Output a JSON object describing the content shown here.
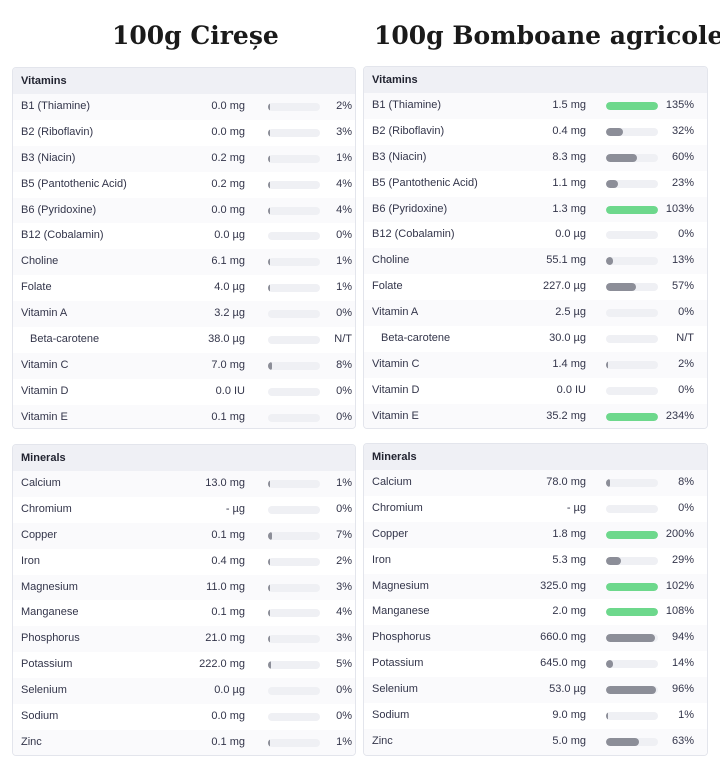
{
  "titles": {
    "left": "100g Cireșe",
    "right": "100g Bomboane agricole"
  },
  "colors": {
    "green": "#6dd88c",
    "gray": "#8c8e98",
    "track": "#eff0f4"
  },
  "left": {
    "vitamins": {
      "header": "Vitamins",
      "rows": [
        {
          "name": "B1 (Thiamine)",
          "amount": "0.0 mg",
          "pct": "2%",
          "level": 0.02
        },
        {
          "name": "B2 (Riboflavin)",
          "amount": "0.0 mg",
          "pct": "3%",
          "level": 0.03
        },
        {
          "name": "B3 (Niacin)",
          "amount": "0.2 mg",
          "pct": "1%",
          "level": 0.01
        },
        {
          "name": "B5 (Pantothenic Acid)",
          "amount": "0.2 mg",
          "pct": "4%",
          "level": 0.04
        },
        {
          "name": "B6 (Pyridoxine)",
          "amount": "0.0 mg",
          "pct": "4%",
          "level": 0.04
        },
        {
          "name": "B12 (Cobalamin)",
          "amount": "0.0 µg",
          "pct": "0%",
          "level": 0
        },
        {
          "name": "Choline",
          "amount": "6.1 mg",
          "pct": "1%",
          "level": 0.01
        },
        {
          "name": "Folate",
          "amount": "4.0 µg",
          "pct": "1%",
          "level": 0.01
        },
        {
          "name": "Vitamin A",
          "amount": "3.2 µg",
          "pct": "0%",
          "level": 0
        },
        {
          "name": "Beta-carotene",
          "amount": "38.0 µg",
          "pct": "N/T",
          "level": 0,
          "indent": true
        },
        {
          "name": "Vitamin C",
          "amount": "7.0 mg",
          "pct": "8%",
          "level": 0.08
        },
        {
          "name": "Vitamin D",
          "amount": "0.0 IU",
          "pct": "0%",
          "level": 0
        },
        {
          "name": "Vitamin E",
          "amount": "0.1 mg",
          "pct": "0%",
          "level": 0
        }
      ]
    },
    "minerals": {
      "header": "Minerals",
      "rows": [
        {
          "name": "Calcium",
          "amount": "13.0 mg",
          "pct": "1%",
          "level": 0.01
        },
        {
          "name": "Chromium",
          "amount": "- µg",
          "pct": "0%",
          "level": 0
        },
        {
          "name": "Copper",
          "amount": "0.1 mg",
          "pct": "7%",
          "level": 0.07
        },
        {
          "name": "Iron",
          "amount": "0.4 mg",
          "pct": "2%",
          "level": 0.02
        },
        {
          "name": "Magnesium",
          "amount": "11.0 mg",
          "pct": "3%",
          "level": 0.03
        },
        {
          "name": "Manganese",
          "amount": "0.1 mg",
          "pct": "4%",
          "level": 0.04
        },
        {
          "name": "Phosphorus",
          "amount": "21.0 mg",
          "pct": "3%",
          "level": 0.03
        },
        {
          "name": "Potassium",
          "amount": "222.0 mg",
          "pct": "5%",
          "level": 0.05
        },
        {
          "name": "Selenium",
          "amount": "0.0 µg",
          "pct": "0%",
          "level": 0
        },
        {
          "name": "Sodium",
          "amount": "0.0 mg",
          "pct": "0%",
          "level": 0
        },
        {
          "name": "Zinc",
          "amount": "0.1 mg",
          "pct": "1%",
          "level": 0.01
        }
      ]
    }
  },
  "right": {
    "vitamins": {
      "header": "Vitamins",
      "rows": [
        {
          "name": "B1 (Thiamine)",
          "amount": "1.5 mg",
          "pct": "135%",
          "level": 1.35
        },
        {
          "name": "B2 (Riboflavin)",
          "amount": "0.4 mg",
          "pct": "32%",
          "level": 0.32
        },
        {
          "name": "B3 (Niacin)",
          "amount": "8.3 mg",
          "pct": "60%",
          "level": 0.6
        },
        {
          "name": "B5 (Pantothenic Acid)",
          "amount": "1.1 mg",
          "pct": "23%",
          "level": 0.23
        },
        {
          "name": "B6 (Pyridoxine)",
          "amount": "1.3 mg",
          "pct": "103%",
          "level": 1.03
        },
        {
          "name": "B12 (Cobalamin)",
          "amount": "0.0 µg",
          "pct": "0%",
          "level": 0
        },
        {
          "name": "Choline",
          "amount": "55.1 mg",
          "pct": "13%",
          "level": 0.13
        },
        {
          "name": "Folate",
          "amount": "227.0 µg",
          "pct": "57%",
          "level": 0.57
        },
        {
          "name": "Vitamin A",
          "amount": "2.5 µg",
          "pct": "0%",
          "level": 0
        },
        {
          "name": "Beta-carotene",
          "amount": "30.0 µg",
          "pct": "N/T",
          "level": 0,
          "indent": true
        },
        {
          "name": "Vitamin C",
          "amount": "1.4 mg",
          "pct": "2%",
          "level": 0.02
        },
        {
          "name": "Vitamin D",
          "amount": "0.0 IU",
          "pct": "0%",
          "level": 0
        },
        {
          "name": "Vitamin E",
          "amount": "35.2 mg",
          "pct": "234%",
          "level": 2.34
        }
      ]
    },
    "minerals": {
      "header": "Minerals",
      "rows": [
        {
          "name": "Calcium",
          "amount": "78.0 mg",
          "pct": "8%",
          "level": 0.08
        },
        {
          "name": "Chromium",
          "amount": "- µg",
          "pct": "0%",
          "level": 0
        },
        {
          "name": "Copper",
          "amount": "1.8 mg",
          "pct": "200%",
          "level": 2.0
        },
        {
          "name": "Iron",
          "amount": "5.3 mg",
          "pct": "29%",
          "level": 0.29
        },
        {
          "name": "Magnesium",
          "amount": "325.0 mg",
          "pct": "102%",
          "level": 1.02
        },
        {
          "name": "Manganese",
          "amount": "2.0 mg",
          "pct": "108%",
          "level": 1.08
        },
        {
          "name": "Phosphorus",
          "amount": "660.0 mg",
          "pct": "94%",
          "level": 0.94
        },
        {
          "name": "Potassium",
          "amount": "645.0 mg",
          "pct": "14%",
          "level": 0.14
        },
        {
          "name": "Selenium",
          "amount": "53.0 µg",
          "pct": "96%",
          "level": 0.96
        },
        {
          "name": "Sodium",
          "amount": "9.0 mg",
          "pct": "1%",
          "level": 0.01
        },
        {
          "name": "Zinc",
          "amount": "5.0 mg",
          "pct": "63%",
          "level": 0.63
        }
      ]
    }
  }
}
